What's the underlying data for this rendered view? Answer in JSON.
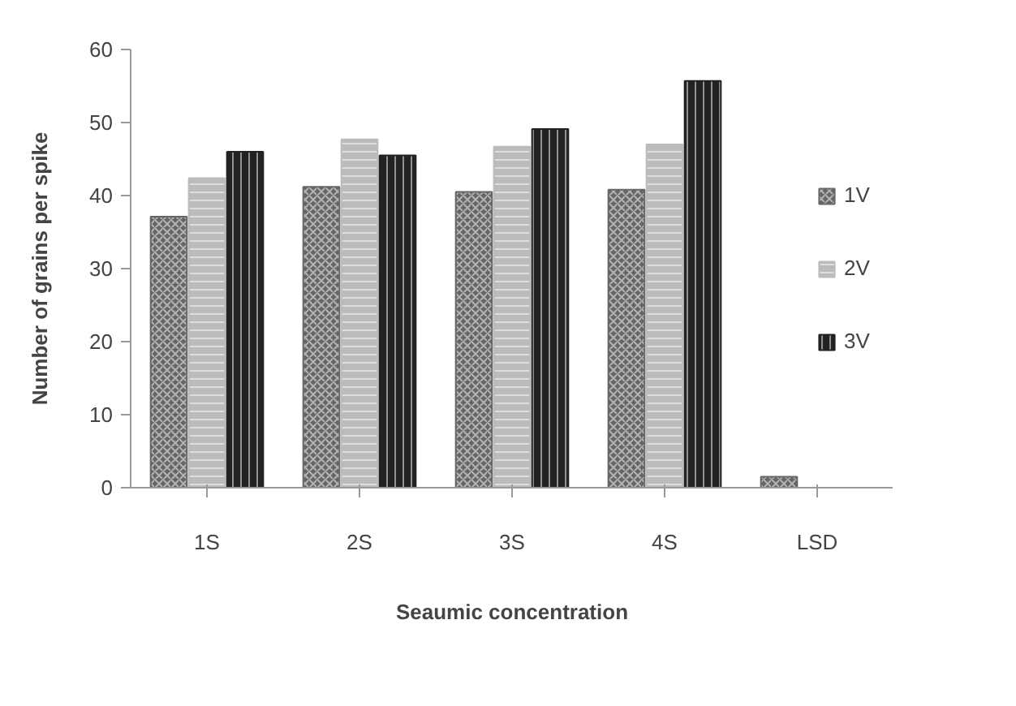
{
  "chart_data": {
    "type": "bar",
    "xlabel": "Seaumic concentration",
    "ylabel": "Number of grains per spike",
    "categories": [
      "1S",
      "2S",
      "3S",
      "4S",
      "LSD"
    ],
    "series": [
      {
        "name": "1V",
        "color": "#666666",
        "values": [
          37.1,
          41.2,
          40.5,
          40.8,
          1.5
        ]
      },
      {
        "name": "2V",
        "color": "#bbbbbb",
        "values": [
          42.4,
          47.7,
          46.7,
          47.0,
          null
        ]
      },
      {
        "name": "3V",
        "color": "#222222",
        "values": [
          46.0,
          45.5,
          49.1,
          55.7,
          null
        ]
      }
    ],
    "ylim": [
      0,
      60
    ],
    "yticks": [
      0,
      10,
      20,
      30,
      40,
      50,
      60
    ],
    "legend": "right"
  }
}
